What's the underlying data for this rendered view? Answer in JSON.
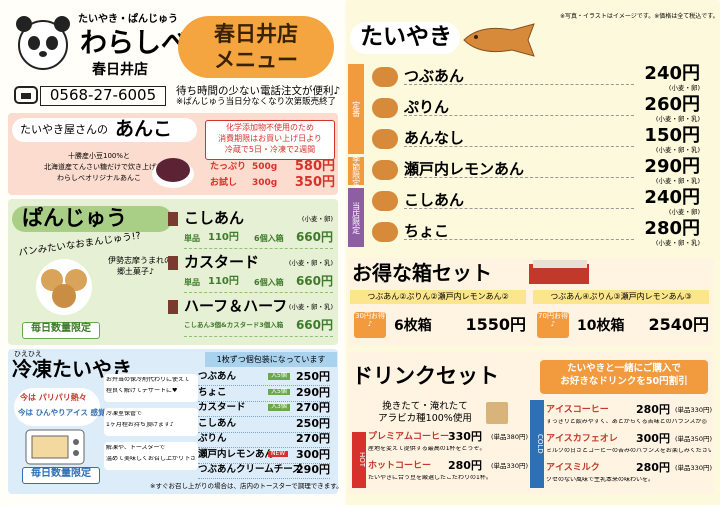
{
  "header": {
    "tagline": "たいやき・ぱんじゅう",
    "brand": "わらしべ",
    "store": "春日井店",
    "phone": "0568-27-6005",
    "badge_line1": "春日井店",
    "badge_line2": "メニュー",
    "note1": "待ち時間の少ない電話注文が便利♪",
    "note2": "※ぱんじゅう当日分なくなり次第販売終了"
  },
  "anko": {
    "title_small": "たいやき屋さんの",
    "title_large": "あんこ",
    "description": [
      "十勝産小豆100%と",
      "北海道産てんさい糖だけで炊き上げた",
      "わらしべオリジナルあんこ"
    ],
    "notice": [
      "化学添加物不使用のため",
      "消費期限はお買い上げ日より",
      "冷蔵で5日・冷凍で2週間"
    ],
    "items": [
      {
        "name": "たっぷり",
        "weight": "500g",
        "price": "580円"
      },
      {
        "name": "お試し",
        "weight": "300g",
        "price": "350円"
      }
    ]
  },
  "panju": {
    "title": "ぱんじゅう",
    "catch": "パンみたいなおまんじゅう!?",
    "origin": [
      "伊勢志摩うまれの",
      "郷土菓子♪"
    ],
    "limited": "毎日数量限定",
    "items": [
      {
        "name": "こしあん",
        "allergens": "(小麦・卵)",
        "single_label": "単品",
        "single_price": "110円",
        "box_label": "6個入箱",
        "box_price": "660円"
      },
      {
        "name": "カスタード",
        "allergens": "(小麦・卵・乳)",
        "single_label": "単品",
        "single_price": "110円",
        "box_label": "6個入箱",
        "box_price": "660円"
      },
      {
        "name": "ハーフ＆ハーフ",
        "allergens": "(小麦・卵・乳)",
        "box_label": "こしあん3個&カスタード3個入箱",
        "box_price": "660円"
      }
    ]
  },
  "frozen": {
    "ruby": "ひえひえ",
    "title": "冷凍たいやき",
    "bubble1": "今は パリパリ熱々",
    "bubble2": "今は ひんやりアイス 感覚♪",
    "tips": [
      [
        "お弁当の保冷剤代わりに使えて",
        "程良く解けてデザートに♥"
      ],
      [
        "冷凍室保管で",
        "1ヶ月程お持ち頂けます♪"
      ],
      [
        "解凍や、トースターで",
        "温めて美味しくお召し上がり下さい"
      ]
    ],
    "limited": "毎日数量限定",
    "notice": "1枚ずつ個包装になっています",
    "items": [
      {
        "name": "つぶあん",
        "tag": "入5個",
        "price": "250円"
      },
      {
        "name": "ちょこ",
        "tag": "入5個",
        "price": "290円"
      },
      {
        "name": "カスタード",
        "tag": "入3個",
        "price": "270円"
      },
      {
        "name": "こしあん",
        "price": "250円"
      },
      {
        "name": "ぷりん",
        "price": "270円"
      },
      {
        "name": "瀬戸内レモンあん",
        "tag": "NEW",
        "price": "300円"
      },
      {
        "name": "つぶあんクリームチーズ",
        "price": "290円"
      }
    ],
    "footnote": "※すぐお召し上がりの場合は、店内のトースターで調理できます。"
  },
  "taiyaki": {
    "note": "※写真・イラストはイメージです。※価格は全て税込です。",
    "title": "たいやき",
    "groups": [
      {
        "label": "定番",
        "items": [
          {
            "name": "つぶあん",
            "price": "240円",
            "allergens": "(小麦・卵)"
          },
          {
            "name": "ぷりん",
            "price": "260円",
            "allergens": "(小麦・卵・乳)"
          },
          {
            "name": "あんなし",
            "price": "150円",
            "allergens": "(小麦・卵・乳)"
          }
        ]
      },
      {
        "label": "季節限定",
        "items": [
          {
            "name": "瀬戸内レモンあん",
            "price": "290円",
            "allergens": "(小麦・卵・乳)"
          }
        ]
      },
      {
        "label": "当店限定",
        "items": [
          {
            "name": "こしあん",
            "price": "240円",
            "allergens": "(小麦・卵)"
          },
          {
            "name": "ちょこ",
            "price": "280円",
            "allergens": "(小麦・卵・乳)"
          }
        ]
      }
    ]
  },
  "boxes": {
    "title": "お得な箱セット",
    "sets": [
      {
        "contents": "つぶあん②ぷりん②瀬戸内レモンあん②",
        "discount": "30円お得♪",
        "name": "6枚箱",
        "price": "1550円"
      },
      {
        "contents": "つぶあん④ぷりん③瀬戸内レモンあん③",
        "discount": "70円お得♪",
        "name": "10枚箱",
        "price": "2540円"
      }
    ]
  },
  "drinks": {
    "title": "ドリンクセット",
    "offer": [
      "たいやきと一緒にご購入で",
      "お好きなドリンクを50円割引"
    ],
    "bean": [
      "挽きたて・淹れたて",
      "アラビカ種100%使用"
    ],
    "hot_label": "HOT",
    "cold_label": "COLD",
    "hot": [
      {
        "name": "プレミアムコーヒー",
        "price": "330円",
        "single": "(単品380円)",
        "desc": "産地を変えて提供する最高の1杯をどうぞ。"
      },
      {
        "name": "ホットコーヒー",
        "price": "280円",
        "single": "(単品330円)",
        "desc": "たいやきに合う豆を厳選したこだわりの1杯。"
      }
    ],
    "cold": [
      {
        "name": "アイスコーヒー",
        "price": "280円",
        "single": "(単品330円)",
        "desc": "すっきりと飲みやすく、あとからくる苦味とのバランスが◎"
      },
      {
        "name": "アイスカフェオレ",
        "price": "300円",
        "single": "(単品350円)",
        "desc": "ミルクの甘さとコーヒーの苦みのバランスをお楽しみください"
      },
      {
        "name": "アイスミルク",
        "price": "280円",
        "single": "(単品330円)",
        "desc": "クセのない風味で生乳本来の味わいを。"
      }
    ]
  }
}
